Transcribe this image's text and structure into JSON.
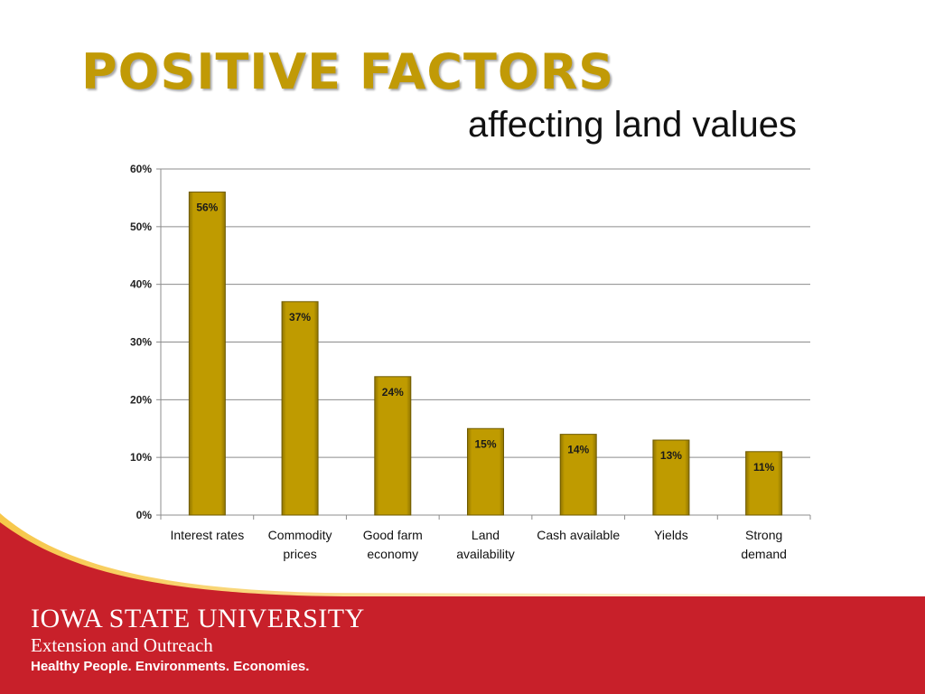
{
  "slide": {
    "title": "POSITIVE FACTORS",
    "subtitle": "affecting land values"
  },
  "footer": {
    "university": "IOWA STATE UNIVERSITY",
    "unit": "Extension and Outreach",
    "tagline": "Healthy People. Environments. Economies."
  },
  "colors": {
    "title": "#c19a06",
    "bar": "#bf9b00",
    "band_red": "#c8202a",
    "band_gold": "#f2b21a"
  },
  "chart_data": {
    "type": "bar",
    "title": "",
    "xlabel": "",
    "ylabel": "",
    "categories": [
      [
        "Interest rates"
      ],
      [
        "Commodity",
        "prices"
      ],
      [
        "Good farm",
        "economy"
      ],
      [
        "Land",
        "availability"
      ],
      [
        "Cash available"
      ],
      [
        "Yields"
      ],
      [
        "Strong",
        "demand"
      ]
    ],
    "values": [
      0.56,
      0.37,
      0.24,
      0.15,
      0.14,
      0.13,
      0.11
    ],
    "data_labels": [
      "56%",
      "37%",
      "24%",
      "15%",
      "14%",
      "13%",
      "11%"
    ],
    "ylim": [
      0,
      0.6
    ],
    "yticks": [
      0,
      0.1,
      0.2,
      0.3,
      0.4,
      0.5,
      0.6
    ],
    "ytick_labels": [
      "0%",
      "10%",
      "20%",
      "30%",
      "40%",
      "50%",
      "60%"
    ],
    "grid": true,
    "legend": "none"
  }
}
